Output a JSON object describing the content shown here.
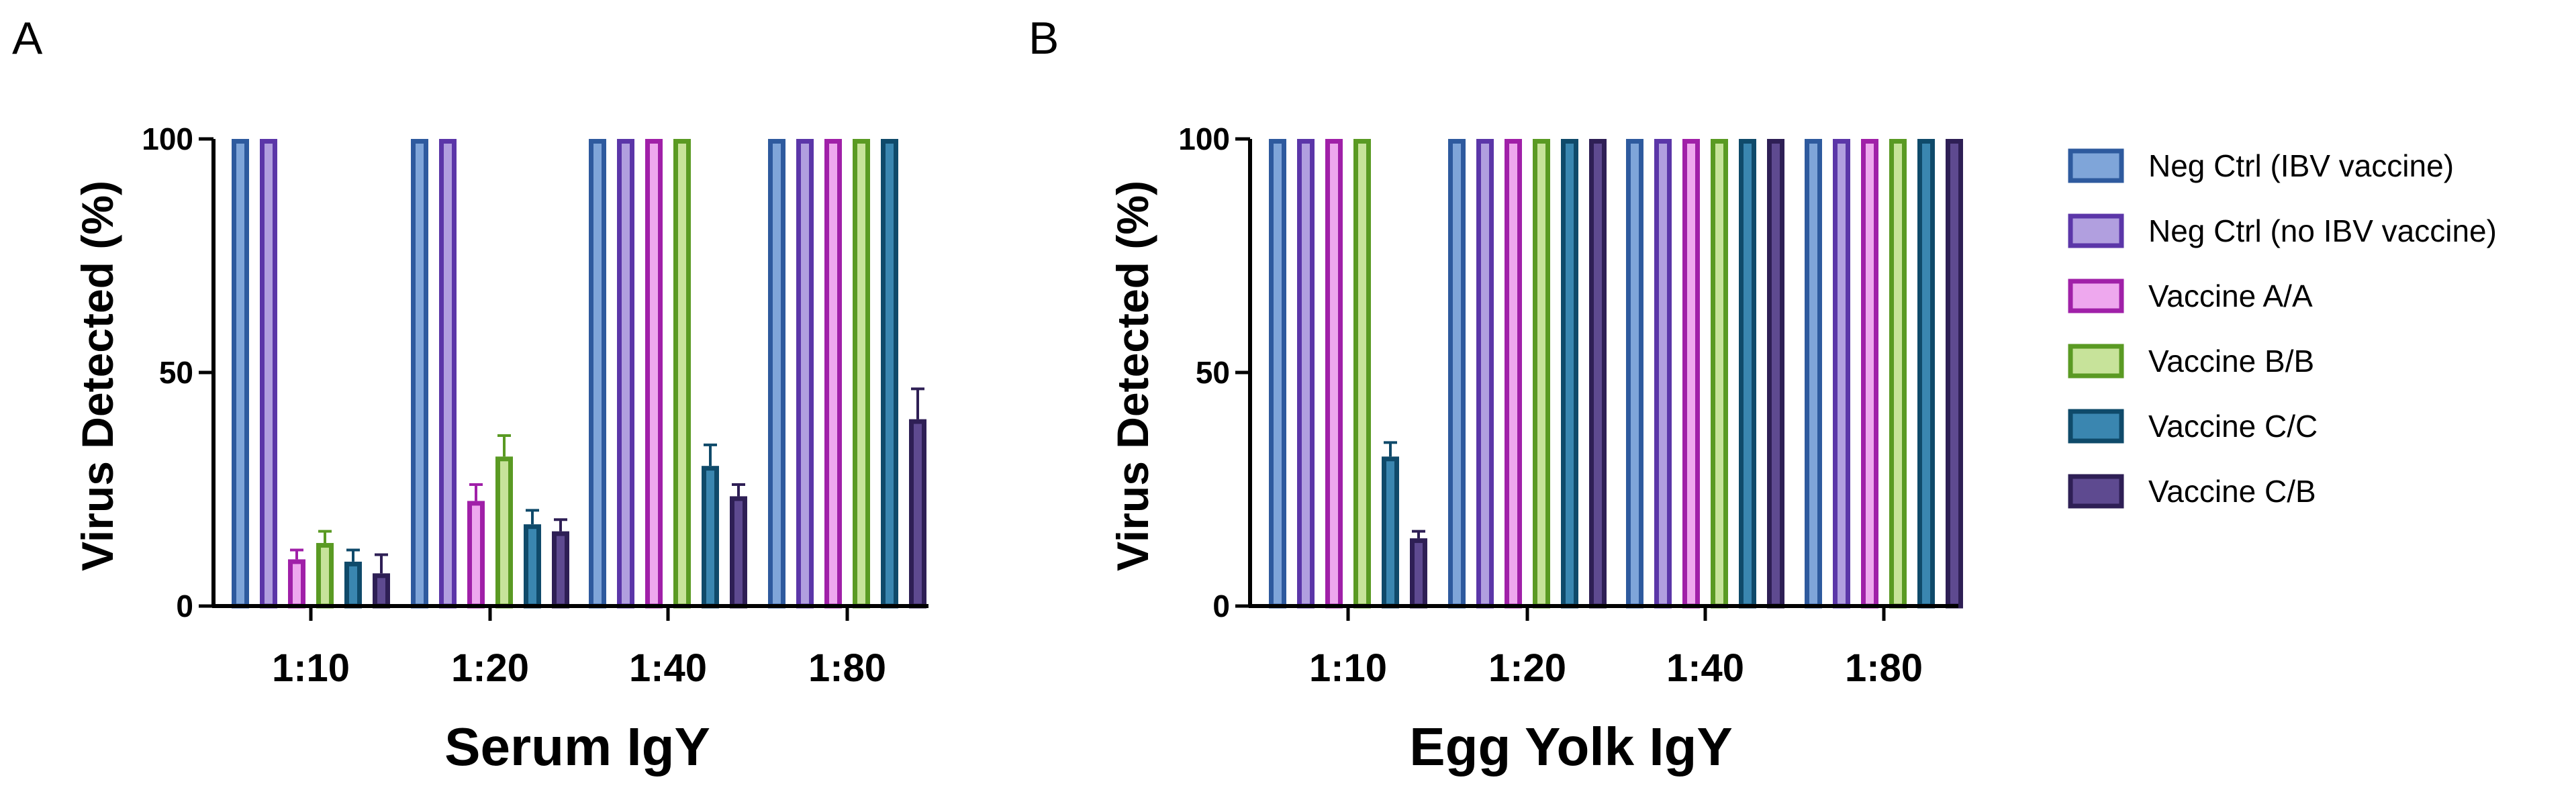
{
  "chart_data": [
    {
      "panel": "A",
      "type": "bar",
      "title": "",
      "xlabel": "Serum IgY",
      "ylabel": "Virus Detected (%)",
      "ylim": [
        0,
        100
      ],
      "yticks": [
        "0",
        "50",
        "100"
      ],
      "categories": [
        "1:10",
        "1:20",
        "1:40",
        "1:80"
      ],
      "series": [
        {
          "name": "Neg Ctrl (IBV vaccine)",
          "values": [
            100,
            100,
            100,
            100
          ],
          "errors": [
            0,
            0,
            0,
            0
          ]
        },
        {
          "name": "Neg Ctrl (no IBV vaccine)",
          "values": [
            100,
            100,
            100,
            100
          ],
          "errors": [
            0,
            0,
            0,
            0
          ]
        },
        {
          "name": "Vaccine A/A",
          "values": [
            10,
            22.5,
            100,
            100
          ],
          "errors": [
            2,
            3.5,
            0,
            0
          ]
        },
        {
          "name": "Vaccine B/B",
          "values": [
            13.5,
            32,
            100,
            100
          ],
          "errors": [
            2.5,
            4.5,
            0,
            0
          ]
        },
        {
          "name": "Vaccine C/C",
          "values": [
            9.5,
            17.5,
            30,
            100
          ],
          "errors": [
            2.5,
            3,
            4.5,
            0
          ]
        },
        {
          "name": "Vaccine C/B",
          "values": [
            7,
            16,
            23.5,
            40
          ],
          "errors": [
            4,
            2.5,
            2.5,
            6.5
          ]
        }
      ]
    },
    {
      "panel": "B",
      "type": "bar",
      "title": "",
      "xlabel": "Egg Yolk IgY",
      "ylabel": "Virus Detected (%)",
      "ylim": [
        0,
        100
      ],
      "yticks": [
        "0",
        "50",
        "100"
      ],
      "categories": [
        "1:10",
        "1:20",
        "1:40",
        "1:80"
      ],
      "series": [
        {
          "name": "Neg Ctrl (IBV vaccine)",
          "values": [
            100,
            100,
            100,
            100
          ],
          "errors": [
            0,
            0,
            0,
            0
          ]
        },
        {
          "name": "Neg Ctrl (no IBV vaccine)",
          "values": [
            100,
            100,
            100,
            100
          ],
          "errors": [
            0,
            0,
            0,
            0
          ]
        },
        {
          "name": "Vaccine A/A",
          "values": [
            100,
            100,
            100,
            100
          ],
          "errors": [
            0,
            0,
            0,
            0
          ]
        },
        {
          "name": "Vaccine B/B",
          "values": [
            100,
            100,
            100,
            100
          ],
          "errors": [
            0,
            0,
            0,
            0
          ]
        },
        {
          "name": "Vaccine C/C",
          "values": [
            32,
            100,
            100,
            100
          ],
          "errors": [
            3,
            0,
            0,
            0
          ]
        },
        {
          "name": "Vaccine C/B",
          "values": [
            14.5,
            100,
            100,
            100
          ],
          "errors": [
            1.5,
            0,
            0,
            0
          ]
        }
      ]
    }
  ],
  "legend": {
    "position": "right",
    "items": [
      {
        "label": "Neg Ctrl (IBV vaccine)",
        "fill": "#7FA5D9",
        "stroke": "#2E5A9E"
      },
      {
        "label": "Neg Ctrl (no IBV vaccine)",
        "fill": "#B19FDF",
        "stroke": "#5B36A8"
      },
      {
        "label": "Vaccine A/A",
        "fill": "#EEA8EE",
        "stroke": "#A020A8"
      },
      {
        "label": "Vaccine B/B",
        "fill": "#C7E39A",
        "stroke": "#5A9A23"
      },
      {
        "label": "Vaccine C/C",
        "fill": "#3A86B0",
        "stroke": "#0F4A6A"
      },
      {
        "label": "Vaccine C/B",
        "fill": "#5E4A90",
        "stroke": "#2E1F55"
      }
    ]
  }
}
